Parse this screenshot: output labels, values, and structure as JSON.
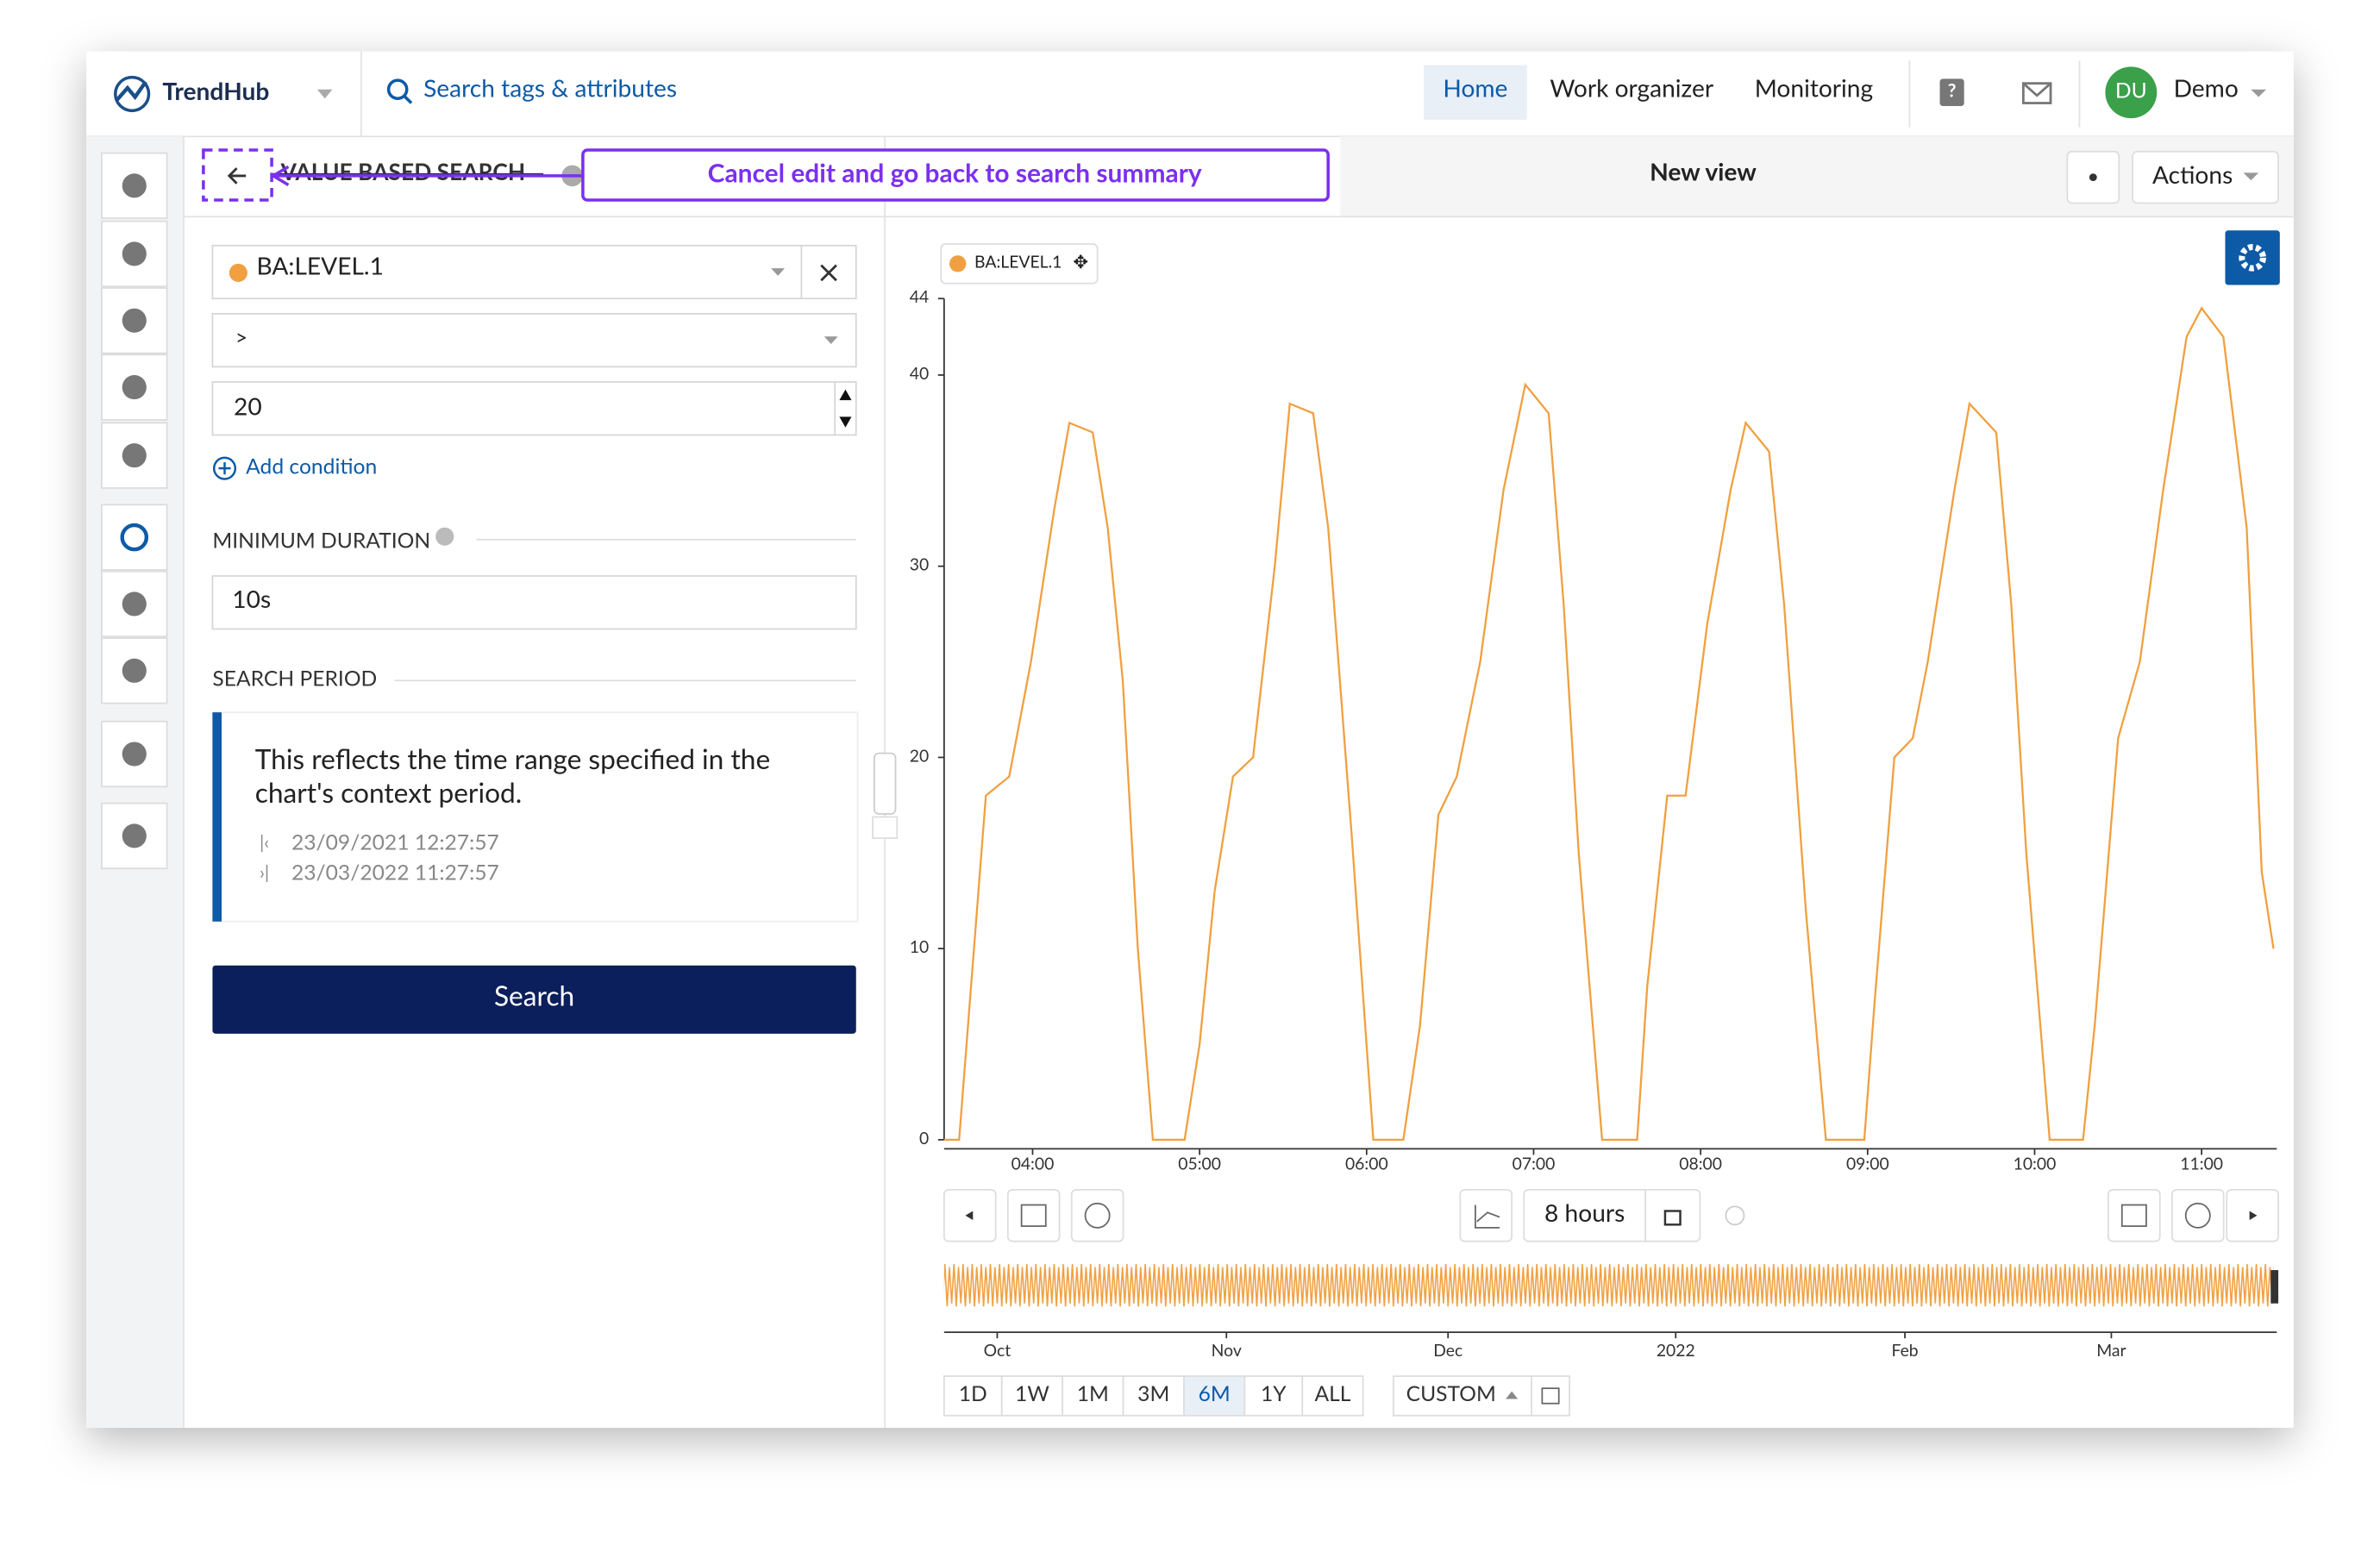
{
  "header": {
    "logo": "TrendHub",
    "search": "Search tags & attributes",
    "nav": [
      "Home",
      "Work organizer",
      "Monitoring"
    ],
    "active_nav": "Home",
    "avatar": "DU",
    "user": "Demo"
  },
  "panel": {
    "title": "VALUE BASED SEARCH",
    "annotation": "Cancel edit and go back to search summary",
    "tag": "BA:LEVEL.1",
    "operator": ">",
    "value": "20",
    "add_condition": "Add condition",
    "min_duration_label": "MINIMUM DURATION",
    "min_duration": "10s",
    "search_period_label": "SEARCH PERIOD",
    "period_note": [
      "This reflects the time range specified in the",
      "chart's context period."
    ],
    "period_start": "23/09/2021 12:27:57",
    "period_end": "23/03/2022 11:27:57",
    "search_button": "Search"
  },
  "view": {
    "title": "New view",
    "actions": "Actions",
    "duration": "8 hours",
    "navigator_labels": [
      "Oct",
      "Nov",
      "Dec",
      "2022",
      "Feb",
      "Mar"
    ],
    "ranges": [
      "1D",
      "1W",
      "1M",
      "3M",
      "6M",
      "1Y",
      "ALL"
    ],
    "active_range": "6M",
    "custom": "CUSTOM"
  },
  "chart_data": {
    "type": "line",
    "x": [
      3.47,
      3.56,
      3.72,
      3.86,
      3.99,
      4.13,
      4.22,
      4.36,
      4.45,
      4.54,
      4.63,
      4.72,
      4.91,
      5.0,
      5.09,
      5.2,
      5.32,
      5.45,
      5.54,
      5.68,
      5.77,
      5.91,
      6.04,
      6.22,
      6.32,
      6.43,
      6.54,
      6.68,
      6.82,
      6.95,
      7.09,
      7.18,
      7.27,
      7.41,
      7.62,
      7.68,
      7.8,
      7.91,
      8.04,
      8.18,
      8.27,
      8.41,
      8.5,
      8.63,
      8.75,
      8.98,
      9.04,
      9.16,
      9.27,
      9.36,
      9.52,
      9.61,
      9.77,
      9.86,
      9.95,
      10.09,
      10.29,
      10.36,
      10.5,
      10.63,
      10.77,
      10.91,
      11.0,
      11.13,
      11.27,
      11.36,
      11.43
    ],
    "series": [
      {
        "name": "BA:LEVEL.1",
        "color": "#f0a040",
        "values": [
          0,
          0,
          18,
          19,
          25,
          33,
          37.5,
          37,
          32,
          24,
          10,
          0,
          0,
          5,
          13,
          19,
          20,
          30,
          38.5,
          38,
          32,
          16,
          0,
          0,
          6,
          17,
          19,
          25,
          34,
          39.5,
          38,
          28,
          15,
          0,
          0,
          8,
          18,
          18,
          27,
          34,
          37.5,
          36,
          28,
          12,
          0,
          0,
          7,
          20,
          21,
          25,
          34,
          38.5,
          37,
          28,
          15,
          0,
          0,
          6,
          21,
          25,
          34,
          42,
          43.5,
          42,
          32,
          14,
          10
        ]
      }
    ],
    "xlim": [
      3.47,
      11.45
    ],
    "ylim": [
      0,
      44
    ],
    "xticks": [
      {
        "value": 4,
        "label": "04:00"
      },
      {
        "value": 5,
        "label": "05:00"
      },
      {
        "value": 6,
        "label": "06:00"
      },
      {
        "value": 7,
        "label": "07:00"
      },
      {
        "value": 8,
        "label": "08:00"
      },
      {
        "value": 9,
        "label": "09:00"
      },
      {
        "value": 10,
        "label": "10:00"
      },
      {
        "value": 11,
        "label": "11:00"
      }
    ],
    "yticks": [
      0,
      10,
      20,
      30,
      40,
      44
    ]
  }
}
